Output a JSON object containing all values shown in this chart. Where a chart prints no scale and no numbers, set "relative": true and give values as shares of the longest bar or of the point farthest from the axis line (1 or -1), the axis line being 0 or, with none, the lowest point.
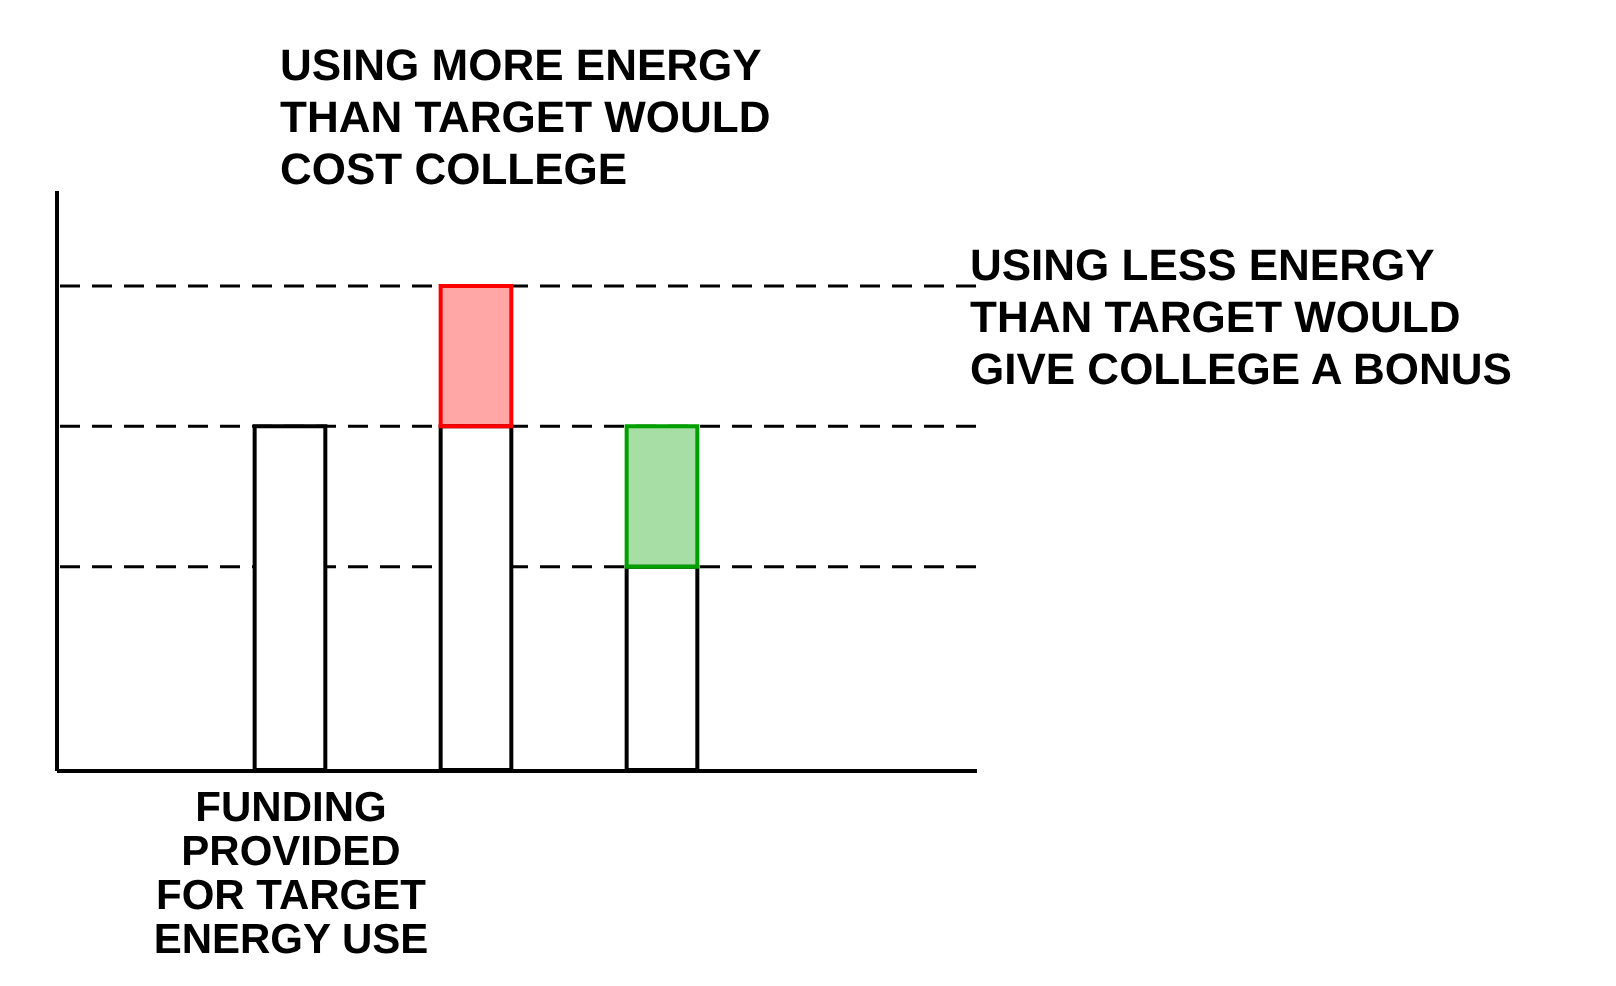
{
  "chart_data": {
    "type": "bar",
    "relative": true,
    "stacked": true,
    "categories": [
      "FUNDING\nPROVIDED\nFOR TARGET\nENERGY USE",
      null,
      null
    ],
    "series": [
      {
        "color": "#ffffff",
        "values": [
          0.71,
          0.71,
          0.42
        ]
      },
      {
        "color": "#ff0000",
        "values": [
          null,
          0.29,
          null
        ]
      },
      {
        "color": "#00a000",
        "values": [
          null,
          null,
          0.29
        ]
      }
    ],
    "ref_lines": [
      {
        "axis": "y",
        "value": 1,
        "line_style": "dashed"
      },
      {
        "axis": "y",
        "value": 0.71,
        "line_style": "dashed"
      },
      {
        "axis": "y",
        "value": 0.42,
        "line_style": "dashed"
      }
    ],
    "annotations": [
      "USING MORE ENERGY\nTHAN TARGET WOULD\nCOST COLLEGE",
      "USING LESS ENERGY\nTHAN TARGET WOULD\nGIVE COLLEGE A BONUS"
    ]
  }
}
